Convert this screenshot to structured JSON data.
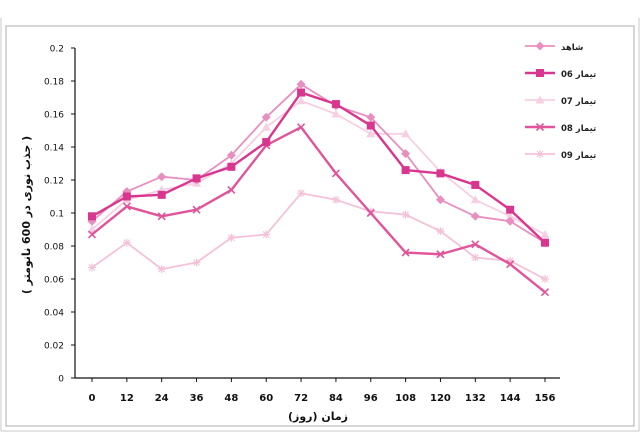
{
  "chart_data": {
    "type": "line",
    "title": "",
    "xlabel": "زمان (روز)",
    "ylabel": "( جذب نوری در 600 نانومتر )",
    "categories": [
      "0",
      "12",
      "24",
      "36",
      "48",
      "60",
      "72",
      "84",
      "96",
      "108",
      "120",
      "132",
      "144",
      "156"
    ],
    "ylim": [
      0,
      0.2
    ],
    "yticks": [
      "0",
      "0.02",
      "0.04",
      "0.06",
      "0.08",
      "0.1",
      "0.12",
      "0.14",
      "0.16",
      "0.18",
      "0.2"
    ],
    "grid": false,
    "legend_position": "top-right",
    "series": [
      {
        "name": "شاهد",
        "color": "#e98fc0",
        "marker": "diamond",
        "values": [
          0.095,
          0.113,
          0.122,
          0.12,
          0.135,
          0.158,
          0.178,
          0.165,
          0.158,
          0.136,
          0.108,
          0.098,
          0.095,
          0.082
        ]
      },
      {
        "name": "06 تیمار",
        "color": "#d9368f",
        "marker": "square",
        "values": [
          0.098,
          0.11,
          0.111,
          0.121,
          0.128,
          0.143,
          0.173,
          0.166,
          0.153,
          0.126,
          0.124,
          0.117,
          0.102,
          0.082
        ]
      },
      {
        "name": "07 تیمار",
        "color": "#f6cfe2",
        "marker": "triangle",
        "values": [
          0.09,
          0.108,
          0.114,
          0.118,
          0.13,
          0.152,
          0.168,
          0.16,
          0.148,
          0.148,
          0.125,
          0.108,
          0.098,
          0.087
        ]
      },
      {
        "name": "08 تیمار",
        "color": "#e0559a",
        "marker": "x",
        "values": [
          0.087,
          0.104,
          0.098,
          0.102,
          0.114,
          0.141,
          0.152,
          0.124,
          0.1,
          0.076,
          0.075,
          0.081,
          0.069,
          0.052
        ]
      },
      {
        "name": "09 تیمار",
        "color": "#f4c2d8",
        "marker": "star",
        "values": [
          0.067,
          0.082,
          0.066,
          0.07,
          0.085,
          0.087,
          0.112,
          0.108,
          0.101,
          0.099,
          0.089,
          0.073,
          0.071,
          0.06
        ]
      }
    ]
  }
}
